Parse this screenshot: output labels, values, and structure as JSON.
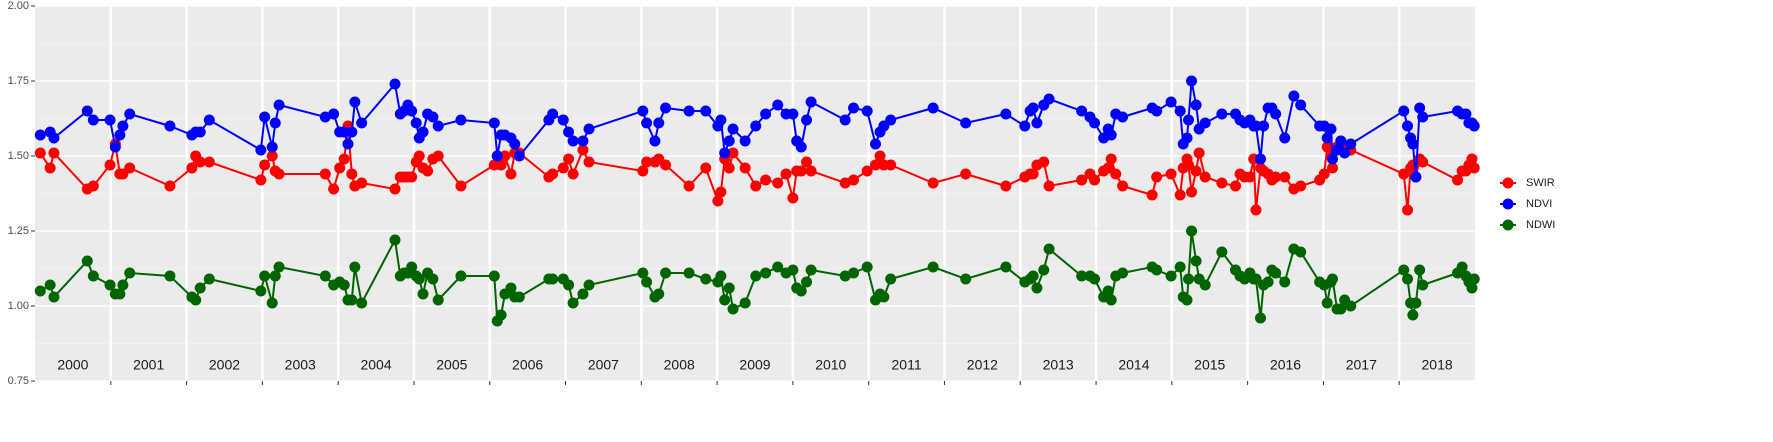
{
  "chart_data": {
    "type": "line",
    "x": [
      2000.07,
      2000.2,
      2000.25,
      2000.69,
      2000.77,
      2000.99,
      2001.06,
      2001.12,
      2001.16,
      2001.25,
      2001.78,
      2002.07,
      2002.12,
      2002.18,
      2002.3,
      2002.98,
      2003.03,
      2003.13,
      2003.17,
      2003.22,
      2003.83,
      2003.94,
      2004.02,
      2004.08,
      2004.13,
      2004.18,
      2004.22,
      2004.31,
      2004.75,
      2004.82,
      2004.87,
      2004.92,
      2004.97,
      2005.03,
      2005.07,
      2005.12,
      2005.18,
      2005.25,
      2005.32,
      2005.62,
      2006.06,
      2006.1,
      2006.15,
      2006.2,
      2006.28,
      2006.33,
      2006.39,
      2006.78,
      2006.83,
      2006.97,
      2007.04,
      2007.1,
      2007.23,
      2007.31,
      2008.02,
      2008.07,
      2008.18,
      2008.23,
      2008.32,
      2008.63,
      2008.85,
      2009.01,
      2009.05,
      2009.1,
      2009.16,
      2009.21,
      2009.37,
      2009.51,
      2009.64,
      2009.8,
      2009.91,
      2010.0,
      2010.05,
      2010.11,
      2010.18,
      2010.24,
      2010.69,
      2010.8,
      2010.98,
      2011.09,
      2011.15,
      2011.2,
      2011.29,
      2011.85,
      2012.28,
      2012.81,
      2013.06,
      2013.13,
      2013.17,
      2013.22,
      2013.31,
      2013.38,
      2013.81,
      2013.92,
      2013.98,
      2014.1,
      2014.16,
      2014.2,
      2014.26,
      2014.35,
      2014.74,
      2014.8,
      2014.99,
      2015.11,
      2015.15,
      2015.2,
      2015.22,
      2015.26,
      2015.32,
      2015.36,
      2015.44,
      2015.66,
      2015.84,
      2015.9,
      2015.96,
      2016.03,
      2016.08,
      2016.11,
      2016.17,
      2016.21,
      2016.27,
      2016.32,
      2016.37,
      2016.49,
      2016.61,
      2016.7,
      2016.95,
      2017.01,
      2017.05,
      2017.1,
      2017.12,
      2017.18,
      2017.23,
      2017.28,
      2017.36,
      2018.06,
      2018.11,
      2018.15,
      2018.18,
      2018.22,
      2018.27,
      2018.31,
      2018.77,
      2018.83,
      2018.88,
      2018.92,
      2018.96,
      2018.99
    ],
    "series": [
      {
        "name": "SWIR",
        "color": "#ff0000",
        "values": [
          1.51,
          1.46,
          1.51,
          1.39,
          1.4,
          1.47,
          1.54,
          1.44,
          1.44,
          1.46,
          1.4,
          1.46,
          1.5,
          1.48,
          1.48,
          1.42,
          1.47,
          1.5,
          1.45,
          1.44,
          1.44,
          1.39,
          1.46,
          1.49,
          1.6,
          1.44,
          1.4,
          1.41,
          1.39,
          1.43,
          1.43,
          1.43,
          1.43,
          1.48,
          1.5,
          1.46,
          1.45,
          1.49,
          1.5,
          1.4,
          1.47,
          1.5,
          1.47,
          1.5,
          1.44,
          1.51,
          1.51,
          1.43,
          1.44,
          1.46,
          1.49,
          1.44,
          1.52,
          1.48,
          1.45,
          1.48,
          1.48,
          1.49,
          1.47,
          1.4,
          1.46,
          1.35,
          1.38,
          1.49,
          1.46,
          1.51,
          1.46,
          1.4,
          1.42,
          1.41,
          1.44,
          1.36,
          1.45,
          1.45,
          1.48,
          1.45,
          1.41,
          1.42,
          1.45,
          1.47,
          1.5,
          1.47,
          1.47,
          1.41,
          1.44,
          1.4,
          1.43,
          1.44,
          1.44,
          1.47,
          1.48,
          1.4,
          1.42,
          1.44,
          1.42,
          1.45,
          1.46,
          1.49,
          1.44,
          1.4,
          1.37,
          1.43,
          1.44,
          1.37,
          1.46,
          1.49,
          1.47,
          1.38,
          1.45,
          1.51,
          1.43,
          1.41,
          1.4,
          1.44,
          1.43,
          1.43,
          1.49,
          1.32,
          1.46,
          1.45,
          1.44,
          1.42,
          1.43,
          1.43,
          1.39,
          1.4,
          1.42,
          1.44,
          1.53,
          1.5,
          1.46,
          1.53,
          1.55,
          1.52,
          1.52,
          1.44,
          1.32,
          1.46,
          1.47,
          1.43,
          1.49,
          1.48,
          1.42,
          1.45,
          1.45,
          1.47,
          1.49,
          1.46
        ]
      },
      {
        "name": "NDVI",
        "color": "#0000ff",
        "values": [
          1.57,
          1.58,
          1.56,
          1.65,
          1.62,
          1.62,
          1.53,
          1.57,
          1.6,
          1.64,
          1.6,
          1.57,
          1.58,
          1.58,
          1.62,
          1.52,
          1.63,
          1.53,
          1.61,
          1.67,
          1.63,
          1.64,
          1.58,
          1.58,
          1.54,
          1.58,
          1.68,
          1.61,
          1.74,
          1.64,
          1.65,
          1.67,
          1.65,
          1.61,
          1.56,
          1.58,
          1.64,
          1.63,
          1.6,
          1.62,
          1.61,
          1.5,
          1.57,
          1.57,
          1.56,
          1.54,
          1.5,
          1.62,
          1.64,
          1.62,
          1.58,
          1.55,
          1.55,
          1.59,
          1.65,
          1.61,
          1.55,
          1.61,
          1.66,
          1.65,
          1.65,
          1.6,
          1.62,
          1.51,
          1.55,
          1.59,
          1.55,
          1.6,
          1.64,
          1.67,
          1.64,
          1.64,
          1.55,
          1.53,
          1.62,
          1.68,
          1.62,
          1.66,
          1.65,
          1.54,
          1.58,
          1.6,
          1.62,
          1.66,
          1.61,
          1.64,
          1.6,
          1.65,
          1.66,
          1.61,
          1.67,
          1.69,
          1.65,
          1.63,
          1.61,
          1.56,
          1.59,
          1.57,
          1.64,
          1.63,
          1.66,
          1.65,
          1.68,
          1.65,
          1.54,
          1.56,
          1.62,
          1.75,
          1.67,
          1.59,
          1.61,
          1.64,
          1.64,
          1.62,
          1.61,
          1.62,
          1.6,
          1.6,
          1.49,
          1.6,
          1.66,
          1.66,
          1.64,
          1.56,
          1.7,
          1.67,
          1.6,
          1.6,
          1.56,
          1.59,
          1.49,
          1.52,
          1.55,
          1.51,
          1.54,
          1.65,
          1.6,
          1.56,
          1.54,
          1.43,
          1.66,
          1.63,
          1.65,
          1.64,
          1.64,
          1.61,
          1.61,
          1.6
        ]
      },
      {
        "name": "NDWI",
        "color": "#006400",
        "values": [
          1.05,
          1.07,
          1.03,
          1.15,
          1.1,
          1.07,
          1.04,
          1.04,
          1.07,
          1.11,
          1.1,
          1.03,
          1.02,
          1.06,
          1.09,
          1.05,
          1.1,
          1.01,
          1.1,
          1.13,
          1.1,
          1.07,
          1.08,
          1.07,
          1.02,
          1.02,
          1.13,
          1.01,
          1.22,
          1.1,
          1.11,
          1.11,
          1.13,
          1.1,
          1.09,
          1.04,
          1.11,
          1.09,
          1.02,
          1.1,
          1.1,
          0.95,
          0.97,
          1.04,
          1.06,
          1.03,
          1.03,
          1.09,
          1.09,
          1.09,
          1.07,
          1.01,
          1.04,
          1.07,
          1.11,
          1.08,
          1.03,
          1.04,
          1.11,
          1.11,
          1.09,
          1.08,
          1.1,
          1.02,
          1.06,
          0.99,
          1.01,
          1.1,
          1.11,
          1.13,
          1.11,
          1.12,
          1.06,
          1.05,
          1.08,
          1.12,
          1.1,
          1.11,
          1.13,
          1.02,
          1.04,
          1.03,
          1.09,
          1.13,
          1.09,
          1.13,
          1.08,
          1.09,
          1.1,
          1.06,
          1.12,
          1.19,
          1.1,
          1.1,
          1.09,
          1.03,
          1.05,
          1.02,
          1.1,
          1.11,
          1.13,
          1.12,
          1.1,
          1.13,
          1.03,
          1.02,
          1.09,
          1.25,
          1.15,
          1.09,
          1.07,
          1.18,
          1.12,
          1.1,
          1.09,
          1.11,
          1.09,
          1.09,
          0.96,
          1.07,
          1.08,
          1.12,
          1.11,
          1.08,
          1.19,
          1.18,
          1.08,
          1.07,
          1.01,
          1.08,
          1.09,
          0.99,
          0.99,
          1.02,
          1.0,
          1.12,
          1.09,
          1.01,
          0.97,
          1.01,
          1.12,
          1.07,
          1.11,
          1.13,
          1.1,
          1.08,
          1.06,
          1.09
        ]
      }
    ],
    "xlim": [
      2000,
      2019
    ],
    "xticks": [
      2001,
      2002,
      2003,
      2004,
      2005,
      2006,
      2007,
      2008,
      2009,
      2010,
      2011,
      2012,
      2013,
      2014,
      2015,
      2016,
      2017,
      2018
    ],
    "year_labels": [
      {
        "value": 2000.5,
        "label": "2000"
      },
      {
        "value": 2001.5,
        "label": "2001"
      },
      {
        "value": 2002.5,
        "label": "2002"
      },
      {
        "value": 2003.5,
        "label": "2003"
      },
      {
        "value": 2004.5,
        "label": "2004"
      },
      {
        "value": 2005.5,
        "label": "2005"
      },
      {
        "value": 2006.5,
        "label": "2006"
      },
      {
        "value": 2007.5,
        "label": "2007"
      },
      {
        "value": 2008.5,
        "label": "2008"
      },
      {
        "value": 2009.5,
        "label": "2009"
      },
      {
        "value": 2010.5,
        "label": "2010"
      },
      {
        "value": 2011.5,
        "label": "2011"
      },
      {
        "value": 2012.5,
        "label": "2012"
      },
      {
        "value": 2013.5,
        "label": "2013"
      },
      {
        "value": 2014.5,
        "label": "2014"
      },
      {
        "value": 2015.5,
        "label": "2015"
      },
      {
        "value": 2016.5,
        "label": "2016"
      },
      {
        "value": 2017.5,
        "label": "2017"
      },
      {
        "value": 2018.5,
        "label": "2018"
      }
    ],
    "ylim": [
      0.75,
      2.0
    ],
    "yticks": [
      {
        "value": 0.75,
        "label": "0.75"
      },
      {
        "value": 1.0,
        "label": "1.00"
      },
      {
        "value": 1.25,
        "label": "1.25"
      },
      {
        "value": 1.5,
        "label": "1.50"
      },
      {
        "value": 1.75,
        "label": "1.75"
      },
      {
        "value": 2.0,
        "label": "2.00"
      }
    ],
    "grid": true,
    "legend": "right"
  }
}
